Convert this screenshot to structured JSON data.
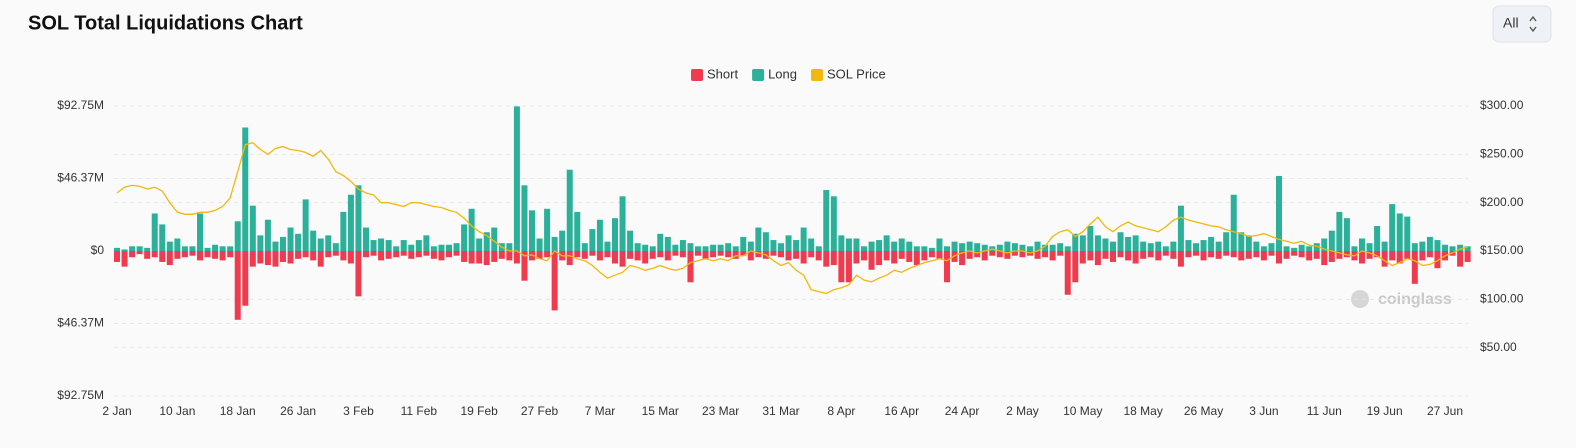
{
  "controls": {
    "range": "All"
  },
  "chart_data": {
    "type": "bar_line",
    "title": "SOL Total Liquidations Chart",
    "watermark": "coinglass",
    "legend": "top",
    "grid": true,
    "ylim": [
      -92.75,
      92.75
    ],
    "yticks": [
      {
        "value": 92.75,
        "label": "$92.75M"
      },
      {
        "value": 46.37,
        "label": "$46.37M"
      },
      {
        "value": 0,
        "label": "$0"
      },
      {
        "value": -46.37,
        "label": "$46.37M"
      },
      {
        "value": -92.75,
        "label": "$92.75M"
      }
    ],
    "y2lim": [
      0,
      300
    ],
    "y2ticks": [
      {
        "value": 300,
        "label": "$300.00"
      },
      {
        "value": 250,
        "label": "$250.00"
      },
      {
        "value": 200,
        "label": "$200.00"
      },
      {
        "value": 150,
        "label": "$150.00"
      },
      {
        "value": 100,
        "label": "$100.00"
      },
      {
        "value": 50,
        "label": "$50.00"
      }
    ],
    "categories": [
      "2 Jan",
      null,
      null,
      null,
      null,
      null,
      null,
      null,
      "10 Jan",
      null,
      null,
      null,
      null,
      null,
      null,
      null,
      "18 Jan",
      null,
      null,
      null,
      null,
      null,
      null,
      null,
      "26 Jan",
      null,
      null,
      null,
      null,
      null,
      null,
      null,
      "3 Feb",
      null,
      null,
      null,
      null,
      null,
      null,
      null,
      "11 Feb",
      null,
      null,
      null,
      null,
      null,
      null,
      null,
      "19 Feb",
      null,
      null,
      null,
      null,
      null,
      null,
      null,
      "27 Feb",
      null,
      null,
      null,
      null,
      null,
      null,
      null,
      "7 Mar",
      null,
      null,
      null,
      null,
      null,
      null,
      null,
      "15 Mar",
      null,
      null,
      null,
      null,
      null,
      null,
      null,
      "23 Mar",
      null,
      null,
      null,
      null,
      null,
      null,
      null,
      "31 Mar",
      null,
      null,
      null,
      null,
      null,
      null,
      null,
      "8 Apr",
      null,
      null,
      null,
      null,
      null,
      null,
      null,
      "16 Apr",
      null,
      null,
      null,
      null,
      null,
      null,
      null,
      "24 Apr",
      null,
      null,
      null,
      null,
      null,
      null,
      null,
      "2 May",
      null,
      null,
      null,
      null,
      null,
      null,
      null,
      "10 May",
      null,
      null,
      null,
      null,
      null,
      null,
      null,
      "18 May",
      null,
      null,
      null,
      null,
      null,
      null,
      null,
      "26 May",
      null,
      null,
      null,
      null,
      null,
      null,
      null,
      "3 Jun",
      null,
      null,
      null,
      null,
      null,
      null,
      null,
      "11 Jun",
      null,
      null,
      null,
      null,
      null,
      null,
      null,
      "19 Jun",
      null,
      null,
      null,
      null,
      null,
      null,
      null,
      "27 Jun",
      null,
      null,
      null
    ],
    "series": [
      {
        "name": "Short",
        "kind": "bar",
        "color": "#ef3b4d",
        "values": [
          -7,
          -10,
          -4,
          -2,
          -5,
          -4,
          -7,
          -9,
          -5,
          -4,
          -3,
          -6,
          -4,
          -5,
          -6,
          -4,
          -44,
          -35,
          -10,
          -8,
          -9,
          -10,
          -7,
          -8,
          -5,
          -4,
          -6,
          -10,
          -4,
          -3,
          -6,
          -8,
          -29,
          -4,
          -3,
          -6,
          -5,
          -4,
          -3,
          -5,
          -4,
          -3,
          -5,
          -6,
          -4,
          -3,
          -7,
          -8,
          -8,
          -9,
          -7,
          -5,
          -6,
          -8,
          -19,
          -6,
          -5,
          -4,
          -38,
          -6,
          -9,
          -4,
          -5,
          -3,
          -6,
          -4,
          -8,
          -10,
          -5,
          -6,
          -8,
          -5,
          -4,
          -6,
          -3,
          -4,
          -20,
          -3,
          -5,
          -4,
          -3,
          -4,
          -5,
          -3,
          -6,
          -4,
          -5,
          -3,
          -4,
          -6,
          -5,
          -8,
          -4,
          -6,
          -10,
          -9,
          -20,
          -20,
          -8,
          -6,
          -12,
          -9,
          -6,
          -8,
          -5,
          -7,
          -9,
          -6,
          -4,
          -5,
          -20,
          -7,
          -9,
          -5,
          -4,
          -6,
          -3,
          -4,
          -5,
          -3,
          -4,
          -3,
          -5,
          -4,
          -6,
          -3,
          -28,
          -20,
          -8,
          -6,
          -9,
          -5,
          -7,
          -4,
          -6,
          -8,
          -5,
          -4,
          -6,
          -3,
          -5,
          -10,
          -4,
          -3,
          -6,
          -4,
          -5,
          -3,
          -4,
          -6,
          -5,
          -4,
          -6,
          -3,
          -8,
          -5,
          -3,
          -4,
          -6,
          -5,
          -9,
          -7,
          -5,
          -4,
          -6,
          -8,
          -5,
          -4,
          -10,
          -6,
          -8,
          -5,
          -21,
          -6,
          -4,
          -11,
          -6,
          -3,
          -10,
          -7
        ]
      },
      {
        "name": "Long",
        "kind": "bar",
        "color": "#2bb19a",
        "values": [
          2,
          1,
          3,
          3,
          2,
          24,
          17,
          6,
          8,
          3,
          3,
          24,
          2,
          4,
          3,
          3,
          19,
          79,
          29,
          10,
          20,
          6,
          9,
          15,
          11,
          33,
          13,
          8,
          10,
          5,
          25,
          36,
          42,
          15,
          7,
          8,
          7,
          3,
          7,
          4,
          7,
          10,
          3,
          4,
          4,
          5,
          17,
          27,
          8,
          12,
          15,
          5,
          5,
          92.5,
          42,
          26,
          8,
          27,
          9,
          13,
          52,
          25,
          5,
          14,
          20,
          6,
          21,
          35,
          13,
          5,
          4,
          3,
          11,
          9,
          4,
          7,
          5,
          3,
          3,
          4,
          4,
          5,
          3,
          9,
          6,
          15,
          12,
          7,
          5,
          10,
          7,
          15,
          8,
          3,
          39,
          35,
          10,
          8,
          8,
          3,
          6,
          7,
          10,
          6,
          8,
          6,
          3,
          3,
          2,
          8,
          3,
          6,
          5,
          6,
          5,
          4,
          3,
          4,
          6,
          5,
          4,
          3,
          6,
          4,
          4,
          5,
          3,
          11,
          10,
          16,
          10,
          8,
          6,
          12,
          9,
          10,
          6,
          5,
          6,
          3,
          6,
          29,
          7,
          5,
          7,
          9,
          6,
          12,
          36,
          12,
          10,
          6,
          3,
          5,
          48,
          3,
          2,
          4,
          3,
          5,
          8,
          13,
          25,
          21,
          3,
          8,
          5,
          16,
          6,
          30,
          24,
          22,
          5,
          6,
          9,
          7,
          4,
          3,
          4,
          3
        ]
      },
      {
        "name": "SOL Price",
        "kind": "line",
        "axis": "y2",
        "color": "#f0b90b",
        "values": [
          210,
          216,
          218,
          217,
          214,
          216,
          212,
          200,
          190,
          188,
          188,
          190,
          190,
          192,
          196,
          205,
          232,
          260,
          262,
          255,
          250,
          256,
          258,
          255,
          254,
          252,
          248,
          254,
          245,
          232,
          228,
          222,
          214,
          210,
          208,
          200,
          200,
          198,
          196,
          200,
          200,
          198,
          196,
          195,
          192,
          190,
          184,
          176,
          170,
          166,
          160,
          154,
          150,
          150,
          145,
          146,
          142,
          140,
          150,
          145,
          145,
          142,
          140,
          135,
          128,
          122,
          125,
          128,
          135,
          133,
          130,
          132,
          135,
          132,
          130,
          132,
          138,
          140,
          142,
          140,
          142,
          140,
          145,
          145,
          150,
          148,
          146,
          140,
          135,
          138,
          130,
          125,
          110,
          108,
          106,
          110,
          112,
          115,
          125,
          120,
          118,
          122,
          125,
          130,
          128,
          132,
          135,
          138,
          140,
          142,
          140,
          145,
          148,
          150,
          148,
          150,
          152,
          150,
          148,
          150,
          150,
          148,
          150,
          155,
          165,
          170,
          172,
          165,
          170,
          178,
          185,
          175,
          170,
          176,
          180,
          176,
          174,
          172,
          170,
          175,
          182,
          185,
          182,
          180,
          178,
          176,
          175,
          172,
          170,
          168,
          165,
          166,
          168,
          165,
          162,
          160,
          158,
          160,
          156,
          155,
          152,
          150,
          148,
          146,
          145,
          150,
          148,
          145,
          140,
          135,
          138,
          142,
          140,
          135,
          136,
          140,
          145,
          148,
          152,
          154
        ]
      }
    ]
  }
}
